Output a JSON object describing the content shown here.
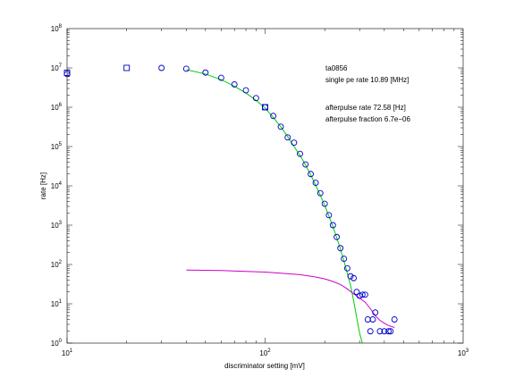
{
  "chart_data": {
    "type": "scatter",
    "xscale": "log",
    "yscale": "log",
    "xlim": [
      10,
      1000
    ],
    "ylim": [
      1,
      100000000
    ],
    "grid": false,
    "xlabel": "discriminator setting [mV]",
    "ylabel": "rate [Hz]",
    "x_tick_labels": [
      {
        "base": "10",
        "exp": "1",
        "value": 10
      },
      {
        "base": "10",
        "exp": "2",
        "value": 100
      },
      {
        "base": "10",
        "exp": "3",
        "value": 1000
      }
    ],
    "y_tick_labels": [
      {
        "base": "10",
        "exp": "0",
        "value": 1
      },
      {
        "base": "10",
        "exp": "1",
        "value": 10
      },
      {
        "base": "10",
        "exp": "2",
        "value": 100
      },
      {
        "base": "10",
        "exp": "3",
        "value": 1000
      },
      {
        "base": "10",
        "exp": "4",
        "value": 10000
      },
      {
        "base": "10",
        "exp": "5",
        "value": 100000
      },
      {
        "base": "10",
        "exp": "6",
        "value": 1000000
      },
      {
        "base": "10",
        "exp": "7",
        "value": 10000000
      },
      {
        "base": "10",
        "exp": "8",
        "value": 100000000
      }
    ],
    "annotations": [
      "ta0856",
      "single pe rate 10.89 [MHz]",
      "afterpulse rate 72.58 [Hz]",
      "afterpulse fraction 6.7e−06"
    ],
    "series": [
      {
        "marker": "square",
        "color": "#0000cc",
        "x": [
          10,
          20,
          100
        ],
        "y": [
          7500000,
          10000000,
          1000000
        ]
      },
      {
        "marker": "circle",
        "color": "#0000cc",
        "x": [
          10,
          30,
          40,
          50,
          60,
          70,
          80,
          90,
          100,
          110,
          120,
          130,
          140,
          150,
          160,
          170,
          180,
          190,
          200,
          210,
          220,
          230,
          240,
          250,
          260,
          270,
          280,
          290,
          300,
          310,
          320,
          330,
          340,
          350,
          360,
          380,
          400,
          420,
          430,
          450
        ],
        "y": [
          7000000,
          10000000,
          9500000,
          7600000,
          5600000,
          3800000,
          2700000,
          1700000,
          1000000,
          600000,
          320000,
          170000,
          125000,
          65000,
          35000,
          20000,
          12000,
          6500,
          3500,
          1800,
          1000,
          500,
          260,
          140,
          80,
          50,
          45,
          20,
          16,
          17,
          17,
          4,
          2,
          4,
          6,
          2,
          2,
          2,
          2,
          4
        ]
      },
      {
        "type": "line",
        "color": "#00cc00",
        "x": [
          40,
          50,
          60,
          70,
          80,
          90,
          100,
          110,
          120,
          130,
          140,
          150,
          160,
          170,
          180,
          190,
          200,
          210,
          220,
          230,
          240,
          250,
          260,
          270,
          280,
          290,
          300,
          310
        ],
        "y": [
          9000000,
          7000000,
          5000000,
          3400000,
          2300000,
          1500000,
          950000,
          550000,
          320000,
          180000,
          100000,
          60000,
          34000,
          19000,
          10500,
          5800,
          3200,
          1700,
          920,
          480,
          250,
          125,
          60,
          30,
          12,
          4.5,
          1.8,
          1
        ]
      },
      {
        "type": "line",
        "color": "#cc00cc",
        "x": [
          40,
          60,
          80,
          100,
          120,
          150,
          180,
          200,
          220,
          240,
          260,
          280,
          300,
          320,
          340,
          360,
          380,
          400,
          420,
          450
        ],
        "y": [
          72,
          70,
          67,
          64,
          60,
          55,
          48,
          43,
          37,
          31,
          24,
          18,
          14,
          11,
          7.5,
          5.0,
          3.8,
          3.2,
          2.8,
          2.5
        ]
      }
    ]
  }
}
